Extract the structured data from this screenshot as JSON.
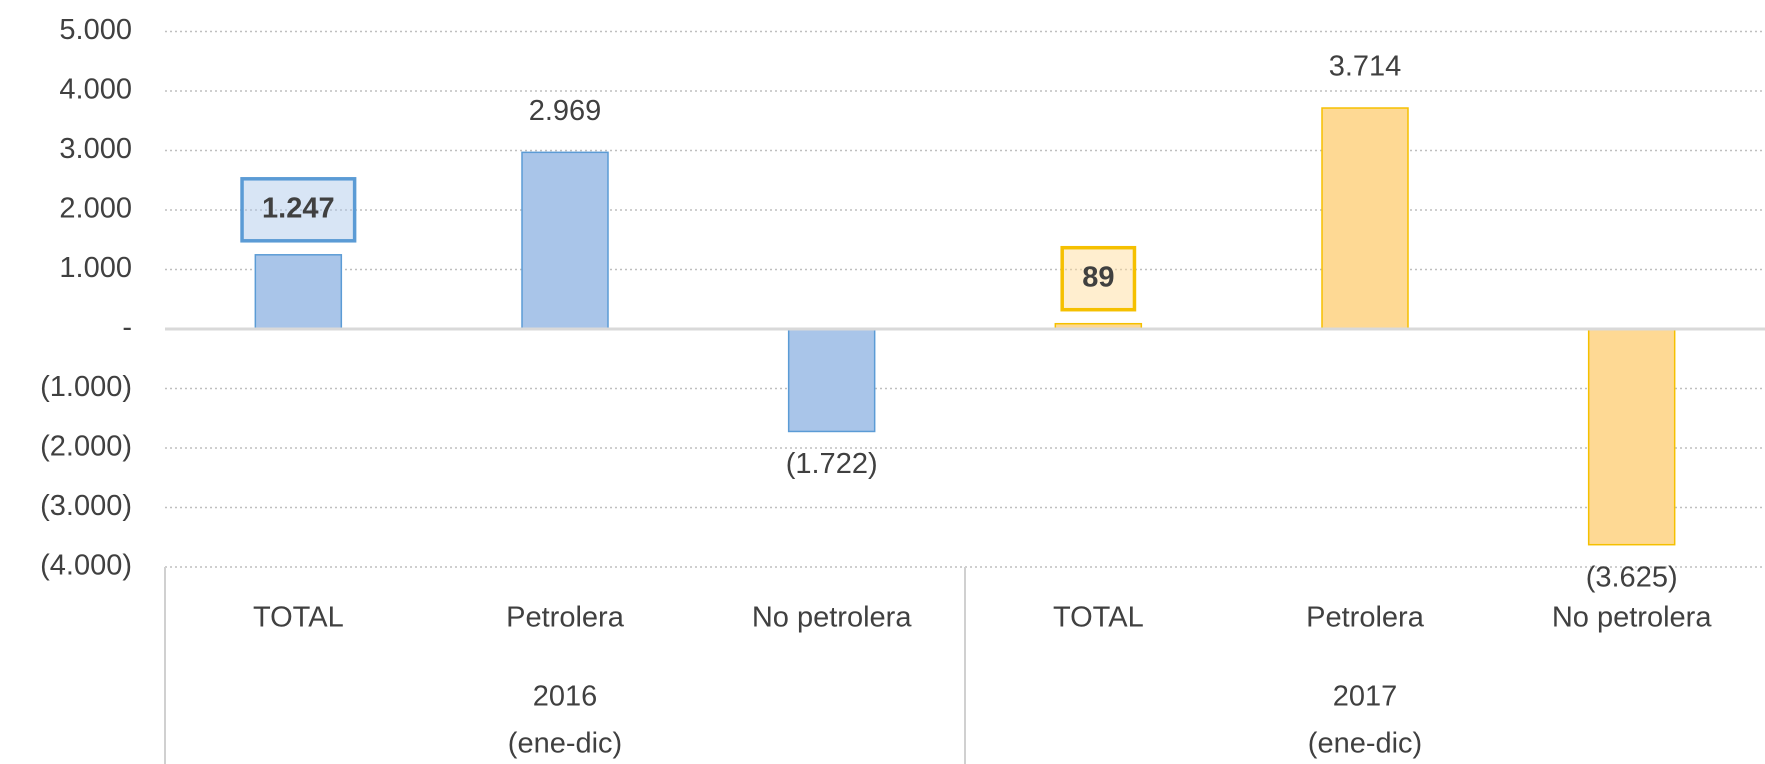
{
  "chart_data": {
    "type": "bar",
    "categories": [
      "TOTAL",
      "Petrolera",
      "No petrolera",
      "TOTAL",
      "Petrolera",
      "No petrolera"
    ],
    "groups": [
      {
        "label": "2016",
        "sublabel": "(ene-dic)"
      },
      {
        "label": "2017",
        "sublabel": "(ene-dic)"
      }
    ],
    "values": [
      1247,
      2969,
      -1722,
      89,
      3714,
      -3625
    ],
    "value_labels": [
      "1.247",
      "2.969",
      "(1.722)",
      "89",
      "3.714",
      "(3.625)"
    ],
    "colors": [
      "#a9c5e9",
      "#a9c5e9",
      "#a9c5e9",
      "#fed994",
      "#fed994",
      "#fed994"
    ],
    "edge_colors": [
      "#5b9bd5",
      "#5b9bd5",
      "#5b9bd5",
      "#f5c000",
      "#f5c000",
      "#f5c000"
    ],
    "ylim": [
      -4000,
      5000
    ],
    "yticks": [
      {
        "value": -4000,
        "label": "(4.000)"
      },
      {
        "value": -3000,
        "label": "(3.000)"
      },
      {
        "value": -2000,
        "label": "(2.000)"
      },
      {
        "value": -1000,
        "label": "(1.000)"
      },
      {
        "value": 0,
        "label": "-"
      },
      {
        "value": 1000,
        "label": "1.000"
      },
      {
        "value": 2000,
        "label": "2.000"
      },
      {
        "value": 3000,
        "label": "3.000"
      },
      {
        "value": 4000,
        "label": "4.000"
      },
      {
        "value": 5000,
        "label": "5.000"
      }
    ],
    "grid": true
  }
}
